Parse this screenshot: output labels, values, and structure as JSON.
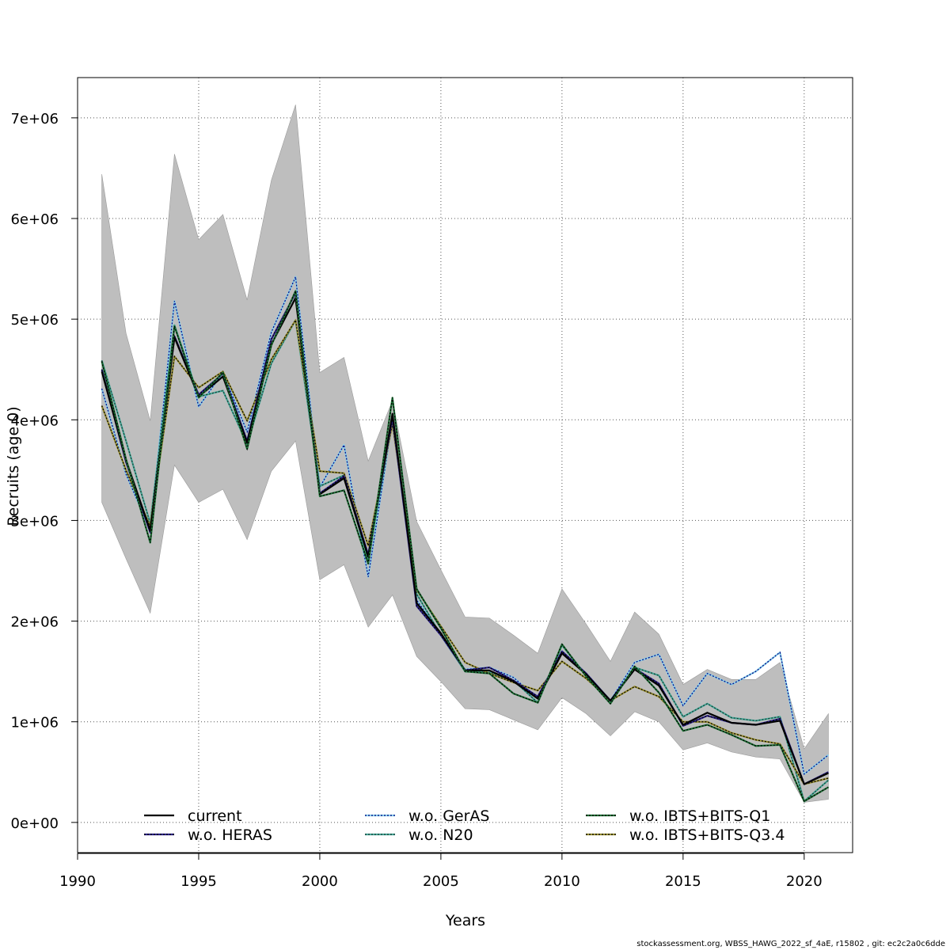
{
  "chart_data": {
    "type": "line",
    "title": "",
    "xlabel": "Years",
    "ylabel": "Recruits (age 0)",
    "xlim": [
      1990,
      2022
    ],
    "ylim": [
      -300000,
      7400000
    ],
    "x_ticks": [
      1990,
      1995,
      2000,
      2005,
      2010,
      2015,
      2020
    ],
    "x_tick_labels": [
      "1990",
      "1995",
      "2000",
      "2005",
      "2010",
      "2015",
      "2020"
    ],
    "y_ticks": [
      0,
      1000000,
      2000000,
      3000000,
      4000000,
      5000000,
      6000000,
      7000000
    ],
    "y_tick_labels": [
      "0e+00",
      "1e+06",
      "2e+06",
      "3e+06",
      "4e+06",
      "5e+06",
      "6e+06",
      "7e+06"
    ],
    "grid": true,
    "legend_position": "bottom",
    "x": [
      1991,
      1992,
      1993,
      1994,
      1995,
      1996,
      1997,
      1998,
      1999,
      2000,
      2001,
      2002,
      2003,
      2004,
      2005,
      2006,
      2007,
      2008,
      2009,
      2010,
      2011,
      2012,
      2013,
      2014,
      2015,
      2016,
      2017,
      2018,
      2019,
      2020,
      2021
    ],
    "confidence_band": {
      "color": "#bebebe",
      "lower": [
        3180000,
        2620000,
        2080000,
        3550000,
        3180000,
        3310000,
        2810000,
        3490000,
        3790000,
        2410000,
        2560000,
        1940000,
        2260000,
        1650000,
        1400000,
        1130000,
        1120000,
        1020000,
        920000,
        1240000,
        1080000,
        860000,
        1100000,
        1000000,
        720000,
        790000,
        700000,
        650000,
        630000,
        200000,
        230000
      ],
      "upper": [
        6440000,
        4860000,
        3990000,
        6640000,
        5790000,
        6040000,
        5190000,
        6380000,
        7130000,
        4470000,
        4620000,
        3590000,
        4190000,
        2990000,
        2510000,
        2040000,
        2030000,
        1860000,
        1680000,
        2320000,
        1970000,
        1600000,
        2090000,
        1870000,
        1370000,
        1520000,
        1420000,
        1420000,
        1590000,
        730000,
        1080000
      ]
    },
    "series": [
      {
        "name": "current",
        "color": "#000000",
        "dashed": false,
        "width": 2.2,
        "values": [
          4480000,
          3600000,
          2900000,
          4820000,
          4230000,
          4430000,
          3770000,
          4750000,
          5210000,
          3260000,
          3420000,
          2640000,
          4060000,
          2180000,
          1880000,
          1510000,
          1510000,
          1400000,
          1230000,
          1680000,
          1470000,
          1210000,
          1520000,
          1360000,
          970000,
          1090000,
          990000,
          970000,
          1010000,
          380000,
          490000
        ]
      },
      {
        "name": "w.o. HERAS",
        "color": "#2b1f8c",
        "dashed": false,
        "width": 2.2,
        "overlay": "#000000",
        "values": [
          4500000,
          3580000,
          2880000,
          4830000,
          4250000,
          4460000,
          3790000,
          4800000,
          5260000,
          3270000,
          3440000,
          2660000,
          4020000,
          2150000,
          1860000,
          1510000,
          1540000,
          1410000,
          1250000,
          1700000,
          1480000,
          1210000,
          1530000,
          1380000,
          960000,
          1060000,
          990000,
          970000,
          1030000,
          380000,
          500000
        ]
      },
      {
        "name": "w.o. GerAS",
        "color": "#87ceeb",
        "dashed": false,
        "width": 2.2,
        "overlay": "#000080",
        "values": [
          4310000,
          3460000,
          2900000,
          5180000,
          4130000,
          4470000,
          3880000,
          4870000,
          5420000,
          3330000,
          3750000,
          2440000,
          4000000,
          2210000,
          1860000,
          1520000,
          1540000,
          1440000,
          1230000,
          1700000,
          1480000,
          1210000,
          1590000,
          1670000,
          1160000,
          1480000,
          1370000,
          1500000,
          1690000,
          480000,
          670000
        ]
      },
      {
        "name": "w.o. N20",
        "color": "#43a897",
        "dashed": false,
        "width": 2.2,
        "overlay": "#1a3a34",
        "values": [
          4590000,
          3790000,
          2970000,
          4940000,
          4230000,
          4290000,
          3760000,
          4560000,
          4990000,
          3340000,
          3450000,
          2610000,
          4000000,
          2270000,
          1860000,
          1500000,
          1490000,
          1410000,
          1190000,
          1760000,
          1460000,
          1190000,
          1540000,
          1460000,
          1050000,
          1180000,
          1040000,
          1010000,
          1050000,
          210000,
          420000
        ]
      },
      {
        "name": "w.o. IBTS+BITS-Q1",
        "color": "#1c7035",
        "dashed": false,
        "width": 2.2,
        "overlay": "#000000",
        "values": [
          4580000,
          3610000,
          2780000,
          4930000,
          4220000,
          4470000,
          3710000,
          4740000,
          5280000,
          3240000,
          3300000,
          2570000,
          4220000,
          2320000,
          1930000,
          1500000,
          1480000,
          1280000,
          1190000,
          1770000,
          1450000,
          1180000,
          1550000,
          1290000,
          910000,
          970000,
          870000,
          760000,
          770000,
          210000,
          350000
        ]
      },
      {
        "name": "w.o. IBTS+BITS-Q3.4",
        "color": "#9a9030",
        "dashed": false,
        "width": 2.2,
        "overlay": "#000000",
        "values": [
          4140000,
          3500000,
          2940000,
          4630000,
          4320000,
          4480000,
          3990000,
          4600000,
          4990000,
          3490000,
          3470000,
          2750000,
          3960000,
          2310000,
          1950000,
          1590000,
          1480000,
          1390000,
          1310000,
          1600000,
          1430000,
          1210000,
          1350000,
          1250000,
          1000000,
          1000000,
          890000,
          820000,
          780000,
          380000,
          440000
        ]
      }
    ]
  },
  "footer_text": "stockassessment.org, WBSS_HAWG_2022_sf_4aE, r15802 , git: ec2c2a0c6dde"
}
